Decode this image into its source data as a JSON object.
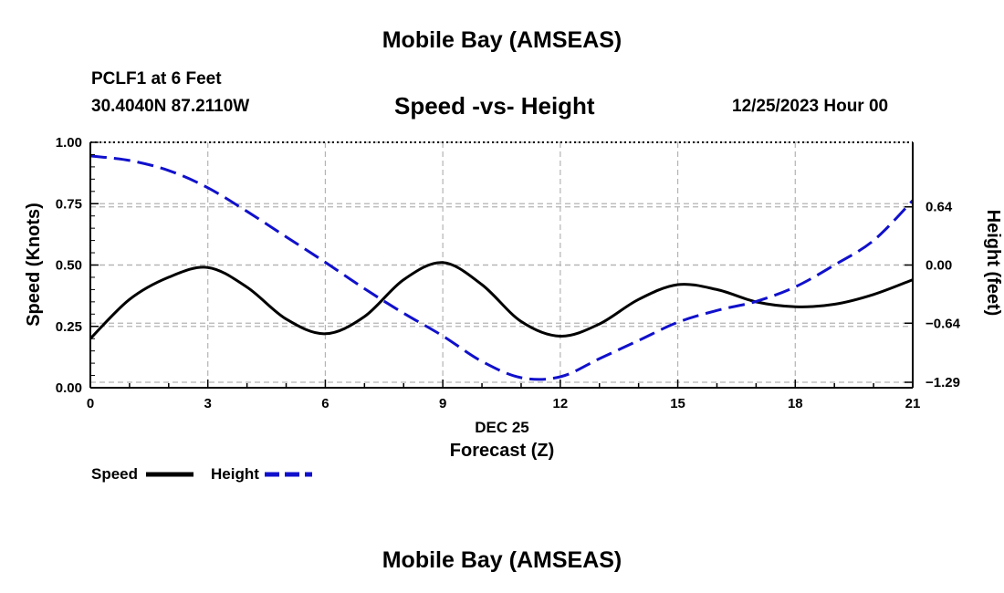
{
  "header": {
    "title": "Mobile Bay (AMSEAS)",
    "station": "PCLF1 at 6 Feet",
    "coords": "30.4040N  87.2110W",
    "plot_title": "Speed -vs- Height",
    "datetime": "12/25/2023 Hour 00"
  },
  "footer": {
    "title": "Mobile Bay (AMSEAS)"
  },
  "legend": {
    "speed_label": "Speed",
    "height_label": "Height"
  },
  "colors": {
    "speed": "#000000",
    "height": "#1010cc",
    "grid": "#b4b4b4"
  },
  "chart_data": {
    "type": "line",
    "xlabel": "Forecast (Z)",
    "xsublabel": "DEC 25",
    "ylabel": "Speed (Knots)",
    "y2label": "Height (feet)",
    "xlim": [
      0,
      21
    ],
    "ylim": [
      0,
      1
    ],
    "y2lim": [
      -1.35,
      1.35
    ],
    "xticks": [
      0,
      3,
      6,
      9,
      12,
      15,
      18,
      21
    ],
    "yticks": [
      0.0,
      0.25,
      0.5,
      0.75,
      1.0
    ],
    "ytick_labels": [
      "0.00",
      "0.25",
      "0.50",
      "0.75",
      "1.00"
    ],
    "y2ticks": [
      -1.29,
      -0.64,
      0.0,
      0.64
    ],
    "y2tick_labels": [
      "−1.29",
      "−0.64",
      "0.00",
      "0.64"
    ],
    "grid": true,
    "legend_position": "bottom-left",
    "x": [
      0,
      1,
      2,
      3,
      4,
      5,
      6,
      7,
      8,
      9,
      10,
      11,
      12,
      13,
      14,
      15,
      16,
      17,
      18,
      19,
      20,
      21
    ],
    "series": [
      {
        "name": "Speed",
        "axis": "left",
        "style": "solid",
        "values": [
          0.2,
          0.36,
          0.45,
          0.49,
          0.41,
          0.28,
          0.22,
          0.29,
          0.44,
          0.51,
          0.42,
          0.27,
          0.21,
          0.26,
          0.36,
          0.42,
          0.4,
          0.35,
          0.33,
          0.34,
          0.38,
          0.44
        ]
      },
      {
        "name": "Height",
        "axis": "right",
        "style": "dashed",
        "values": [
          1.2,
          1.15,
          1.04,
          0.85,
          0.59,
          0.31,
          0.03,
          -0.26,
          -0.53,
          -0.78,
          -1.06,
          -1.24,
          -1.23,
          -1.03,
          -0.83,
          -0.63,
          -0.5,
          -0.4,
          -0.24,
          0.0,
          0.27,
          0.71
        ]
      }
    ]
  }
}
